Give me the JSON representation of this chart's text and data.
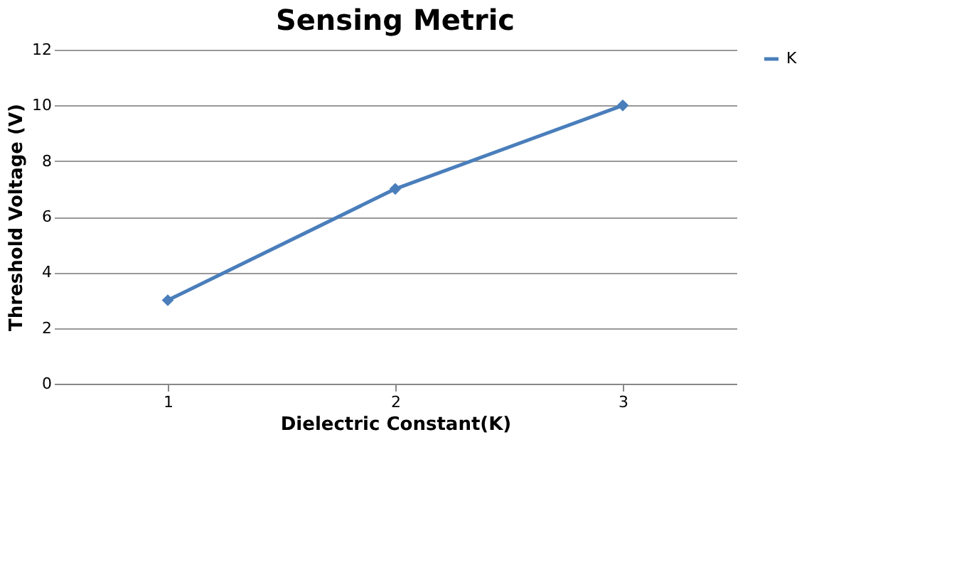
{
  "chart_data": {
    "type": "line",
    "title": "Sensing Metric",
    "xlabel": "Dielectric Constant(K)",
    "ylabel": "Threshold Voltage (V)",
    "categories": [
      "1",
      "2",
      "3"
    ],
    "series": [
      {
        "name": "K",
        "color": "#4a7ebb",
        "values": [
          3,
          7,
          10
        ]
      }
    ],
    "ylim": [
      0,
      12
    ],
    "yticks": [
      0,
      2,
      4,
      6,
      8,
      10,
      12
    ],
    "grid": "y",
    "legend": "right",
    "marker": "diamond",
    "line_style": "solid"
  }
}
